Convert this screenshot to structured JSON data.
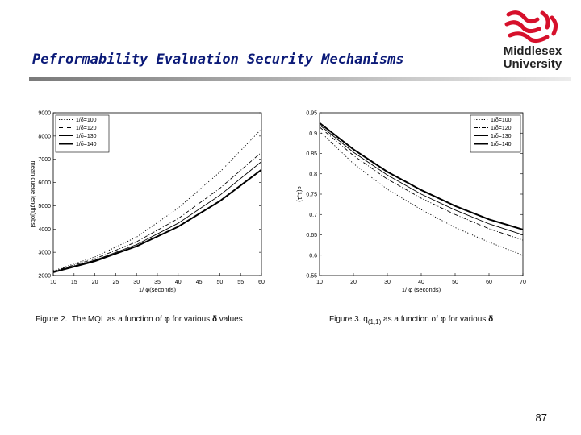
{
  "slide": {
    "title": "Pefrormability Evaluation Security Mechanisms",
    "page_number": "87",
    "logo": {
      "line1": "Middlesex",
      "line2": "University"
    },
    "captions": [
      {
        "prefix": "Figure 2.  The MQL as a function of ",
        "phi": "φ",
        "mid": " for various ",
        "sym": "δ",
        "suffix": " values"
      },
      {
        "prefix": "Figure 3. q",
        "sub": "(1,1)",
        "mid1": " as a function of ",
        "phi": "φ",
        "mid2": " for various ",
        "sym": "δ",
        "suffix": ""
      }
    ]
  },
  "colors": {
    "title": "#0b1a78",
    "logo_red": "#d6102b",
    "rule": "#9a9a9a"
  },
  "chart_data": [
    {
      "type": "line",
      "title": "",
      "xlabel": "1/ φ(seconds)",
      "ylabel": "mean queue length(jobs)",
      "xlim": [
        10,
        60
      ],
      "ylim": [
        2000,
        9000
      ],
      "xticks": [
        "10",
        "15",
        "20",
        "25",
        "30",
        "35",
        "40",
        "45",
        "50",
        "55",
        "60"
      ],
      "yticks": [
        "2000",
        "3000",
        "4000",
        "5000",
        "6000",
        "7000",
        "8000",
        "9000"
      ],
      "legend_position": "top-left",
      "x": [
        10,
        20,
        30,
        40,
        50,
        60
      ],
      "series": [
        {
          "name": "1/δ=100",
          "style": "dotted",
          "values": [
            2200,
            2800,
            3650,
            4900,
            6450,
            8300
          ]
        },
        {
          "name": "1/δ=120",
          "style": "dashdot",
          "values": [
            2180,
            2720,
            3450,
            4450,
            5750,
            7300
          ]
        },
        {
          "name": "1/δ=130",
          "style": "solid",
          "values": [
            2160,
            2660,
            3330,
            4250,
            5450,
            6900
          ]
        },
        {
          "name": "1/δ=140",
          "style": "thick",
          "values": [
            2140,
            2620,
            3260,
            4100,
            5200,
            6550
          ]
        }
      ]
    },
    {
      "type": "line",
      "title": "",
      "xlabel": "1/ φ (seconds)",
      "ylabel": "q(1,1)",
      "xlim": [
        10,
        70
      ],
      "ylim": [
        0.55,
        0.95
      ],
      "xticks": [
        "10",
        "20",
        "30",
        "40",
        "50",
        "60",
        "70"
      ],
      "yticks": [
        "0.55",
        "0.6",
        "0.65",
        "0.7",
        "0.75",
        "0.8",
        "0.85",
        "0.9",
        "0.95"
      ],
      "legend_position": "top-right",
      "x": [
        10,
        20,
        30,
        40,
        50,
        60,
        70
      ],
      "series": [
        {
          "name": "1/δ=100",
          "style": "dotted",
          "values": [
            0.905,
            0.825,
            0.762,
            0.712,
            0.668,
            0.632,
            0.6
          ]
        },
        {
          "name": "1/δ=120",
          "style": "dashdot",
          "values": [
            0.915,
            0.845,
            0.787,
            0.74,
            0.7,
            0.665,
            0.637
          ]
        },
        {
          "name": "1/δ=130",
          "style": "solid",
          "values": [
            0.92,
            0.853,
            0.797,
            0.75,
            0.711,
            0.677,
            0.65
          ]
        },
        {
          "name": "1/δ=140",
          "style": "thick",
          "values": [
            0.925,
            0.86,
            0.805,
            0.76,
            0.721,
            0.688,
            0.663
          ]
        }
      ]
    }
  ]
}
